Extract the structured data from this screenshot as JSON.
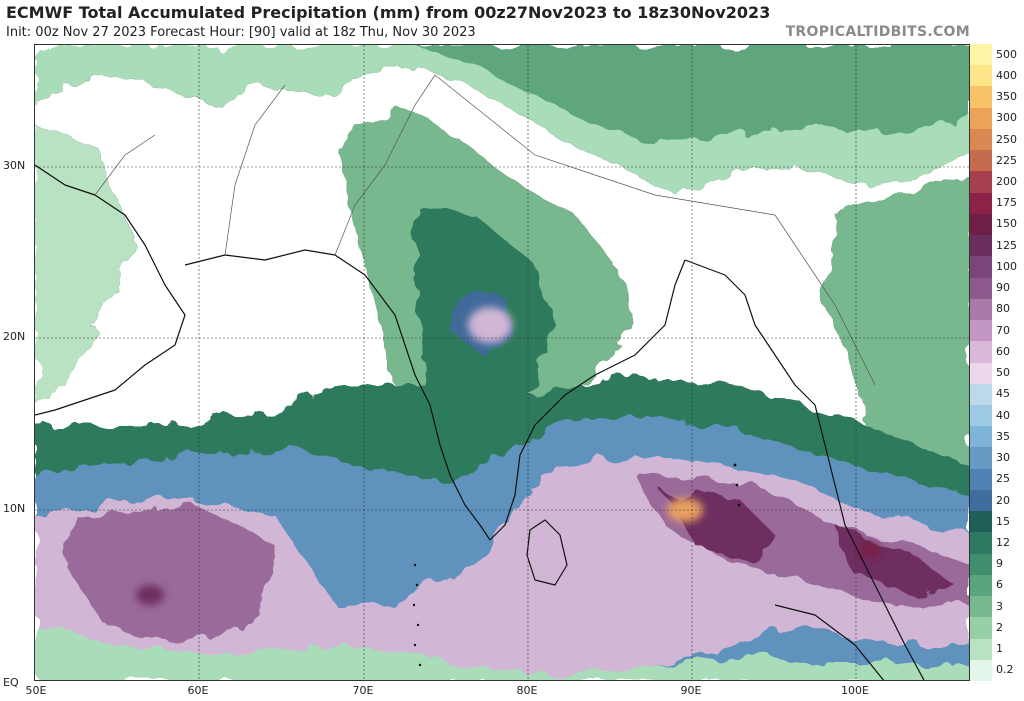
{
  "header": {
    "title": "ECMWF Total Accumulated Precipitation (mm) from 00z27Nov2023 to 18z30Nov2023",
    "subtitle": "Init: 00z Nov 27 2023   Forecast Hour: [90]   valid at 18z Thu, Nov 30 2023",
    "brand": "TROPICALTIDBITS.COM"
  },
  "map": {
    "lat_labels": [
      "30N",
      "20N",
      "10N",
      "EQ"
    ],
    "lon_labels": [
      "50E",
      "60E",
      "70E",
      "80E",
      "90E",
      "100E"
    ]
  },
  "colorbar": {
    "levels": [
      "500",
      "400",
      "350",
      "300",
      "250",
      "225",
      "200",
      "175",
      "150",
      "125",
      "100",
      "90",
      "80",
      "70",
      "60",
      "50",
      "45",
      "40",
      "35",
      "30",
      "25",
      "20",
      "15",
      "12",
      "9",
      "6",
      "3",
      "2",
      "1",
      "0.2"
    ],
    "colors": [
      "#fff3a8",
      "#ffe58a",
      "#f7c26a",
      "#eba457",
      "#d98852",
      "#c76b4f",
      "#a64050",
      "#8c2247",
      "#6e1f45",
      "#6a2e5e",
      "#7a4578",
      "#8e5a8e",
      "#a979a9",
      "#c496c4",
      "#d9b8d9",
      "#ecd8ec",
      "#bcd9ea",
      "#9ec9e4",
      "#7eb4d8",
      "#6699c4",
      "#4f82b2",
      "#3f6e9e",
      "#1f5f58",
      "#2f7a62",
      "#3f8f6e",
      "#5aa37f",
      "#78b88f",
      "#97cfa6",
      "#b8e2c2",
      "#e3f6ea"
    ]
  },
  "precip_colors": {
    "light_green": "#a9dcb9",
    "mid_green": "#5fa57d",
    "dark_green": "#2f7a5c",
    "deep_green": "#1f5f50",
    "blue": "#5f92bd",
    "deep_blue": "#3f6a9a",
    "light_purple": "#d2b6d6",
    "purple": "#9a6a9a",
    "dark_purple": "#6e2e5e",
    "maroon": "#7a1f45",
    "orange": "#e8a060"
  }
}
